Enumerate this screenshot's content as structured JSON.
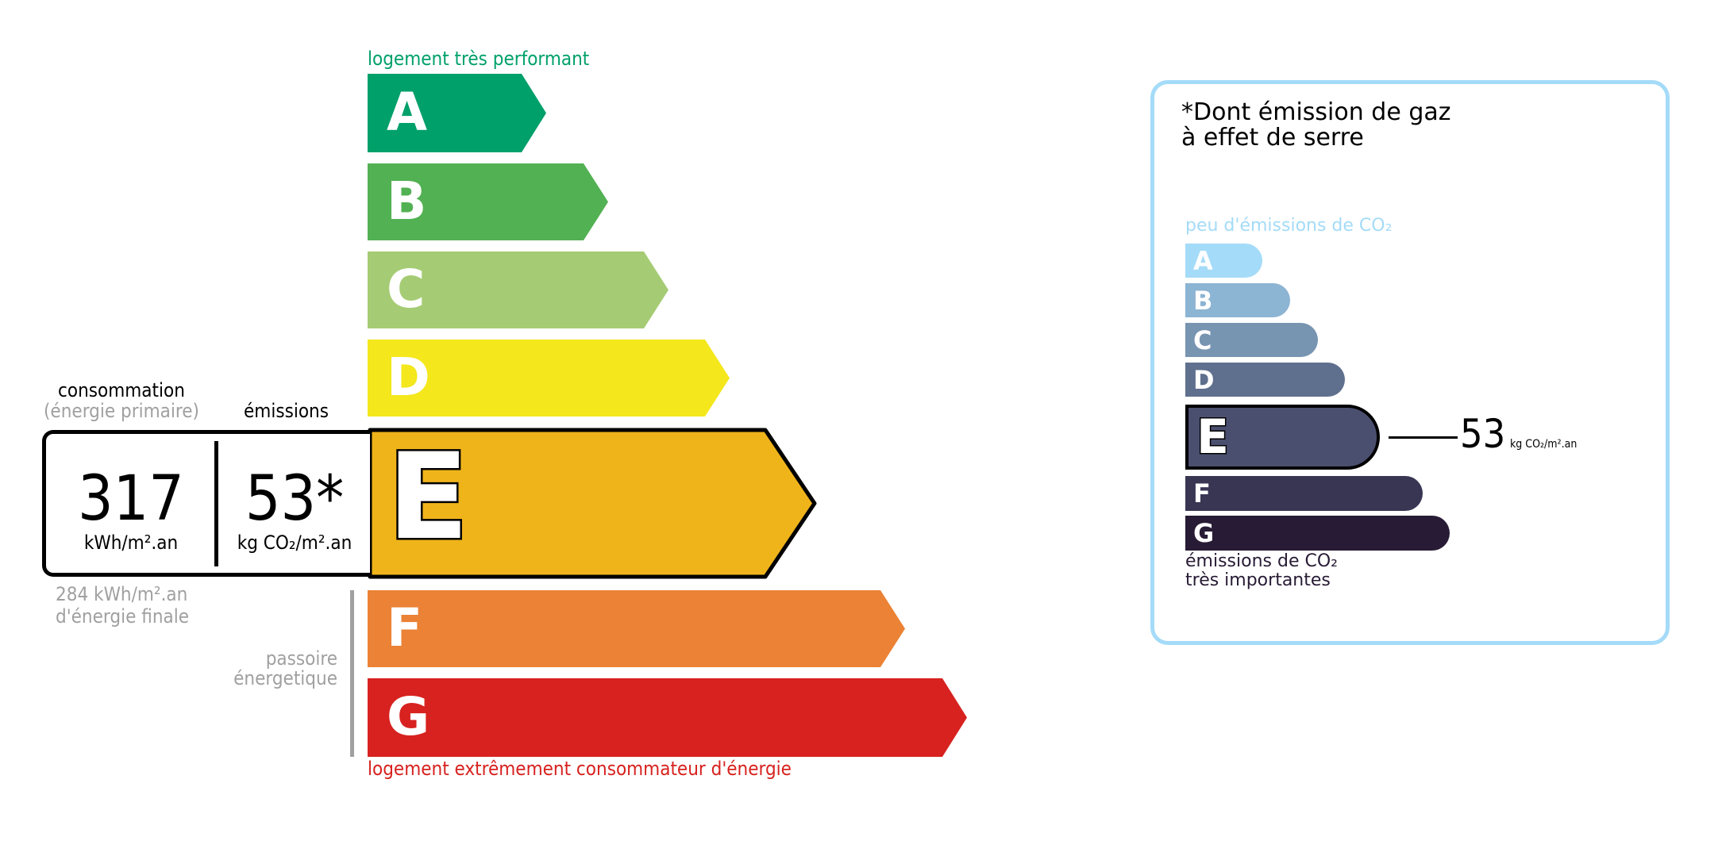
{
  "energy": {
    "top_label": "logement très performant",
    "bottom_label": "logement extrêmement consommateur d'énergie",
    "active": "E",
    "classes": [
      {
        "letter": "A",
        "color": "#00a06b"
      },
      {
        "letter": "B",
        "color": "#52b153"
      },
      {
        "letter": "C",
        "color": "#a5cc74"
      },
      {
        "letter": "D",
        "color": "#f4e71c"
      },
      {
        "letter": "E",
        "color": "#f0b41b"
      },
      {
        "letter": "F",
        "color": "#eb8235"
      },
      {
        "letter": "G",
        "color": "#d7221f"
      }
    ],
    "consumption_label": "consommation",
    "consumption_sub": "(énergie primaire)",
    "emissions_label": "émissions",
    "consumption_value": "317",
    "consumption_unit": "kWh/m².an",
    "emissions_value": "53*",
    "emissions_unit": "kg CO₂/m².an",
    "final_energy_1": "284 kWh/m².an",
    "final_energy_2": "d'énergie finale",
    "passoire_1": "passoire",
    "passoire_2": "énergetique",
    "colors": {
      "top": "#00a06b",
      "bottom": "#d7221f",
      "grey": "#a0a0a0"
    }
  },
  "ghg": {
    "title_1": "*Dont émission de gaz",
    "title_2": "à effet de serre",
    "top_label": "peu d'émissions de CO₂",
    "bottom_label_1": "émissions de CO₂",
    "bottom_label_2": "très importantes",
    "active": "E",
    "value": "53",
    "unit": "kg CO₂/m².an",
    "classes": [
      {
        "letter": "A",
        "color": "#a4dbf8"
      },
      {
        "letter": "B",
        "color": "#8cb4d3"
      },
      {
        "letter": "C",
        "color": "#7794b1"
      },
      {
        "letter": "D",
        "color": "#5f6f8e"
      },
      {
        "letter": "E",
        "color": "#4b4f6f"
      },
      {
        "letter": "F",
        "color": "#383653"
      },
      {
        "letter": "G",
        "color": "#281b35"
      }
    ],
    "border_color": "#a4dbf8"
  }
}
